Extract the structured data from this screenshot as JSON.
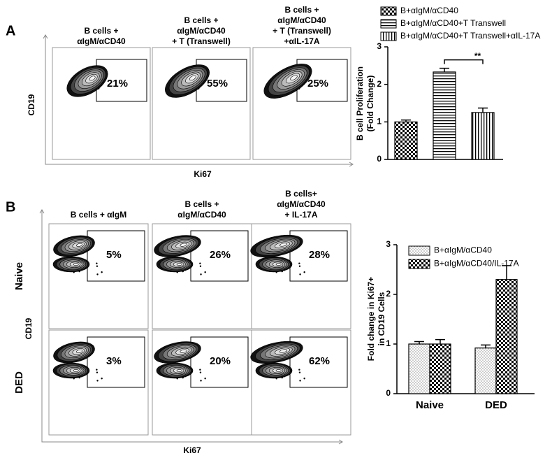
{
  "panel_a": {
    "label": "A",
    "x_label": "Ki67",
    "y_label": "CD19",
    "plots": [
      {
        "title": [
          "B cells +",
          "αIgM/αCD40"
        ],
        "percent": "21%"
      },
      {
        "title": [
          "B cells +",
          "αIgM/αCD40",
          "+ T  (Transwell)"
        ],
        "percent": "55%"
      },
      {
        "title": [
          "B cells +",
          "αIgM/αCD40",
          "+ T  (Transwell)",
          "+αIL-17A"
        ],
        "percent": "25%"
      }
    ]
  },
  "panel_b": {
    "label": "B",
    "x_label": "Ki67",
    "y_label": "CD19",
    "rows": [
      "Naive",
      "DED"
    ],
    "columns": [
      [
        "B cells + αIgM"
      ],
      [
        "B cells +",
        "αIgM/αCD40"
      ],
      [
        "B cells+",
        "αIgM/αCD40",
        "+ IL-17A"
      ]
    ],
    "percents": [
      [
        "5%",
        "26%",
        "28%"
      ],
      [
        "3%",
        "20%",
        "62%"
      ]
    ]
  },
  "chart_data": [
    {
      "type": "bar",
      "ylabel": [
        "B cell Proliferation",
        "(Fold Change)"
      ],
      "categories": [
        null
      ],
      "series": [
        {
          "name": "B+αIgM/αCD40",
          "pattern": "checker",
          "values": [
            1.0
          ],
          "errors": [
            0.05
          ]
        },
        {
          "name": "B+αIgM/αCD40+T Transwell",
          "pattern": "hstripe",
          "values": [
            2.33
          ],
          "errors": [
            0.1
          ]
        },
        {
          "name": "B+αIgM/αCD40+T Transwell+αIL-17A",
          "pattern": "vstripe",
          "values": [
            1.25
          ],
          "errors": [
            0.12
          ]
        }
      ],
      "significance": {
        "label": "**",
        "series": [
          1,
          2
        ]
      },
      "ylim": [
        0,
        3
      ],
      "yticks": [
        0,
        1,
        2,
        3
      ]
    },
    {
      "type": "bar",
      "ylabel": [
        "Fold change in Ki67+",
        "in CD19 Cells"
      ],
      "categories": [
        "Naive",
        "DED"
      ],
      "series": [
        {
          "name": "B+αIgM/αCD40",
          "pattern": "dots",
          "values": [
            1.0,
            0.92
          ],
          "errors": [
            0.05,
            0.06
          ]
        },
        {
          "name": "B+αIgM/αCD40/IL-17A",
          "pattern": "checker",
          "values": [
            1.0,
            2.3
          ],
          "errors": [
            0.09,
            0.28
          ]
        }
      ],
      "ylim": [
        0,
        3
      ],
      "yticks": [
        0,
        1,
        2,
        3
      ]
    }
  ]
}
